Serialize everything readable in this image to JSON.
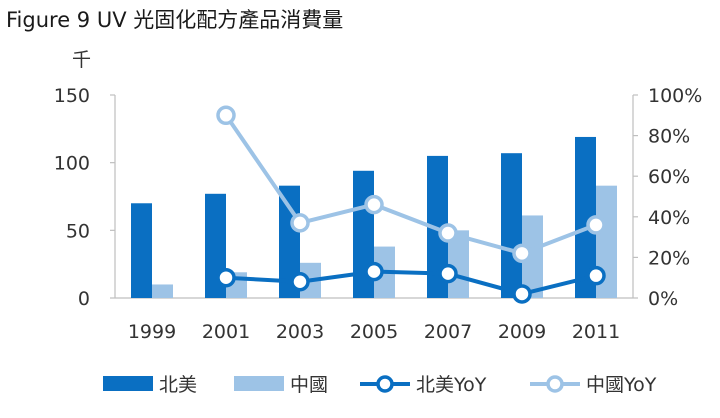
{
  "title": "Figure 9 UV 光固化配方產品消費量",
  "chart_data": {
    "type": "bar",
    "title": "Figure 9 UV 光固化配方產品消費量",
    "categories": [
      "1999",
      "2001",
      "2003",
      "2005",
      "2007",
      "2009",
      "2011"
    ],
    "y_unit_label": "千",
    "ylim": [
      0,
      150
    ],
    "y_ticks": [
      "150",
      "100",
      "50",
      "0"
    ],
    "y2lim": [
      0,
      100
    ],
    "y2_ticks": [
      "100%",
      "80%",
      "60%",
      "40%",
      "20%",
      "0%"
    ],
    "grid": false,
    "legend_position": "bottom",
    "series": [
      {
        "name": "北美",
        "type": "bar",
        "axis": "left",
        "color": "#0a6fc2",
        "values": [
          70,
          77,
          83,
          94,
          105,
          107,
          119
        ]
      },
      {
        "name": "中國",
        "type": "bar",
        "axis": "left",
        "color": "#9dc3e6",
        "values": [
          10,
          19,
          26,
          38,
          50,
          61,
          83
        ]
      },
      {
        "name": "北美YoY",
        "type": "line",
        "axis": "right",
        "color": "#0a6fc2",
        "x": [
          "2001",
          "2003",
          "2005",
          "2007",
          "2009",
          "2011"
        ],
        "values": [
          10,
          8,
          13,
          12,
          2,
          11
        ]
      },
      {
        "name": "中國YoY",
        "type": "line",
        "axis": "right",
        "color": "#9dc3e6",
        "x": [
          "2001",
          "2003",
          "2005",
          "2007",
          "2009",
          "2011"
        ],
        "values": [
          90,
          37,
          46,
          32,
          22,
          36
        ]
      }
    ]
  }
}
